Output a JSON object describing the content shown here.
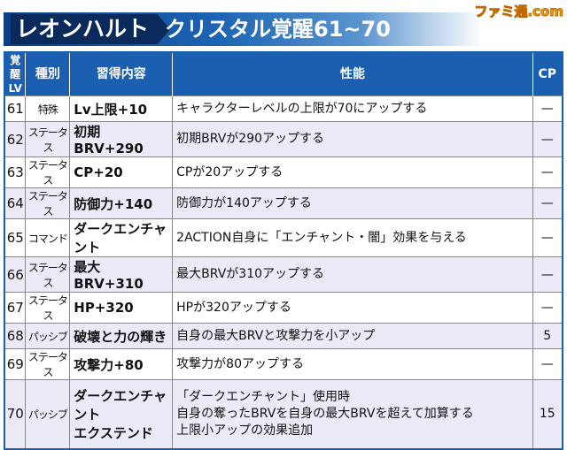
{
  "header": {
    "character": "レオンハルト",
    "title": "クリスタル覚醒61~70",
    "logo": "ファミ通.com"
  },
  "columns": [
    "覚醒LV",
    "種別",
    "習得内容",
    "性能",
    "CP"
  ],
  "rows": [
    {
      "lv": "61",
      "kind": "特殊",
      "skill": "Lv上限+10",
      "effect": "キャラクターレベルの上限が70にアップする",
      "cp": "—"
    },
    {
      "lv": "62",
      "kind": "ステータス",
      "skill": "初期BRV+290",
      "effect": "初期BRVが290アップする",
      "cp": "—"
    },
    {
      "lv": "63",
      "kind": "ステータス",
      "skill": "CP+20",
      "effect": "CPが20アップする",
      "cp": "—"
    },
    {
      "lv": "64",
      "kind": "ステータス",
      "skill": "防御力+140",
      "effect": "防御力が140アップする",
      "cp": "—"
    },
    {
      "lv": "65",
      "kind": "コマンド",
      "skill": "ダークエンチャント",
      "effect": "2ACTION自身に「エンチャント・闇」効果を与える",
      "cp": "—"
    },
    {
      "lv": "66",
      "kind": "ステータス",
      "skill": "最大BRV+310",
      "effect": "最大BRVが310アップする",
      "cp": "—"
    },
    {
      "lv": "67",
      "kind": "ステータス",
      "skill": "HP+320",
      "effect": "HPが320アップする",
      "cp": "—"
    },
    {
      "lv": "68",
      "kind": "パッシブ",
      "skill": "破壊と力の輝き",
      "effect": "自身の最大BRVと攻撃力を小アップ",
      "cp": "5"
    },
    {
      "lv": "69",
      "kind": "ステータス",
      "skill": "攻撃力+80",
      "effect": "攻撃力が80アップする",
      "cp": "—"
    },
    {
      "lv": "70",
      "kind": "パッシブ",
      "skill": "ダークエンチャント\nエクステンド",
      "effect": "「ダークエンチャント」使用時\n自身の奪ったBRVを自身の最大BRVを超えて加算する\n上限小アップの効果追加",
      "cp": "15"
    }
  ],
  "colors": {
    "header_blue": "#1a5fb0",
    "alt_row": "#ebebf7"
  }
}
